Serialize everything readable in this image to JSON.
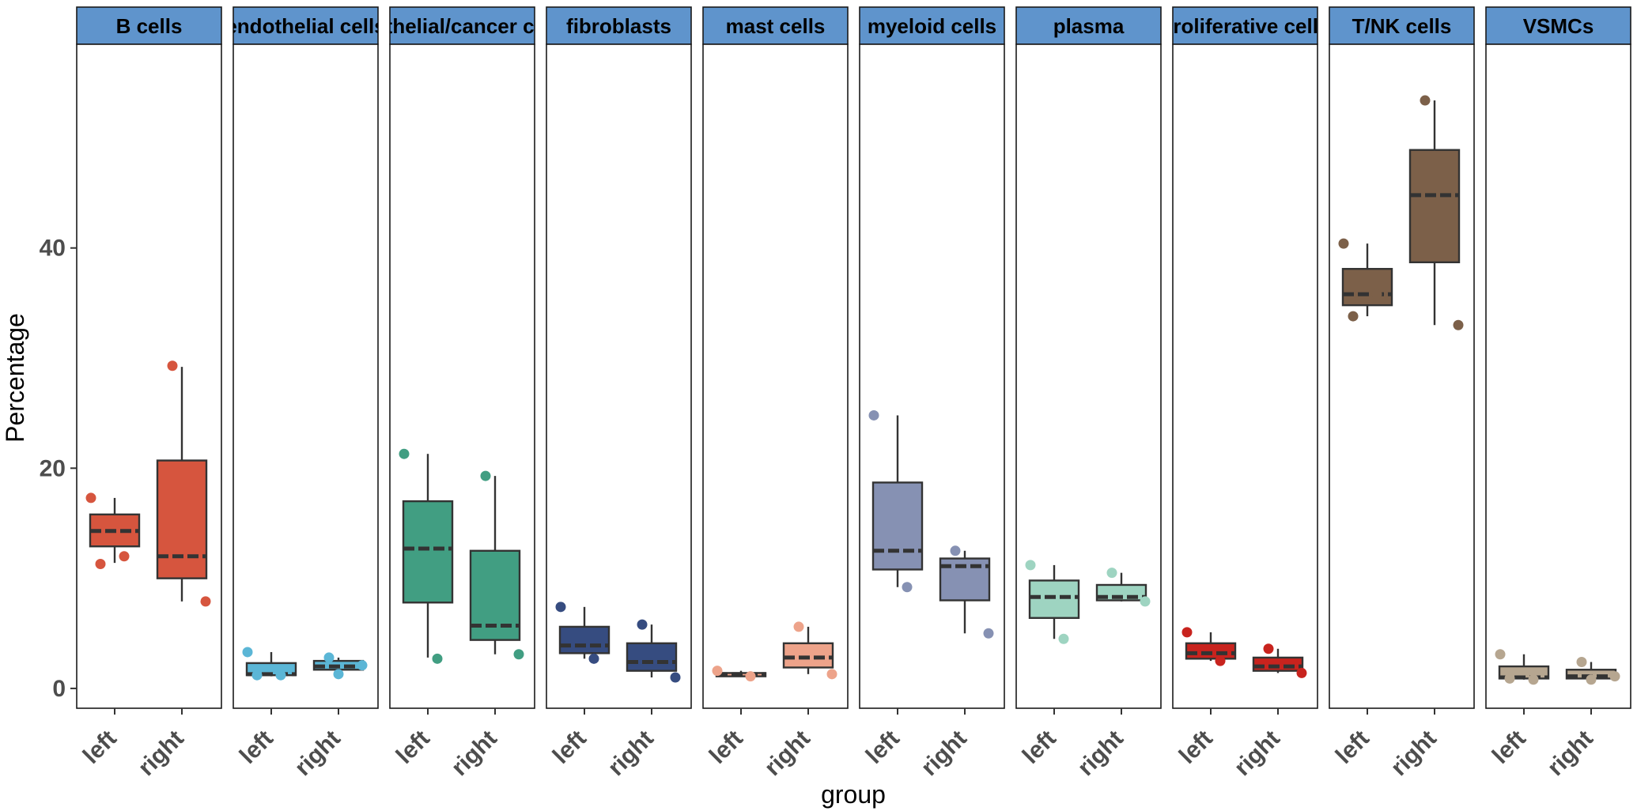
{
  "chart_data": {
    "type": "boxplot",
    "xlabel": "group",
    "ylabel": "Percentage",
    "ylim": [
      -1.8,
      58.5
    ],
    "yticks": [
      0,
      20,
      40
    ],
    "groups": [
      "left",
      "right"
    ],
    "facets": [
      {
        "label": "B cells",
        "color": "#D6553E",
        "boxes": [
          {
            "group": "left",
            "q1": 12.9,
            "median": 14.3,
            "q3": 15.8,
            "whisker_low": 11.4,
            "whisker_high": 17.3,
            "points": [
              17.3,
              12.0,
              11.3
            ]
          },
          {
            "group": "right",
            "q1": 10.0,
            "median": 12.0,
            "q3": 20.7,
            "whisker_low": 7.9,
            "whisker_high": 29.2,
            "points": [
              29.3,
              7.9
            ]
          }
        ]
      },
      {
        "label": "endothelial cells",
        "color": "#5BB6D6",
        "boxes": [
          {
            "group": "left",
            "q1": 1.2,
            "median": 1.3,
            "q3": 2.3,
            "whisker_low": 1.1,
            "whisker_high": 3.3,
            "points": [
              3.3,
              1.2,
              1.2
            ]
          },
          {
            "group": "right",
            "q1": 1.7,
            "median": 2.0,
            "q3": 2.5,
            "whisker_low": 1.3,
            "whisker_high": 2.8,
            "points": [
              2.8,
              2.1,
              1.3
            ]
          }
        ]
      },
      {
        "label": "epithelial/cancer cells",
        "color": "#419E82",
        "boxes": [
          {
            "group": "left",
            "q1": 7.8,
            "median": 12.7,
            "q3": 17.0,
            "whisker_low": 2.8,
            "whisker_high": 21.3,
            "points": [
              21.3,
              2.7
            ]
          },
          {
            "group": "right",
            "q1": 4.4,
            "median": 5.7,
            "q3": 12.5,
            "whisker_low": 3.1,
            "whisker_high": 19.3,
            "points": [
              19.3,
              3.1
            ]
          }
        ]
      },
      {
        "label": "fibroblasts",
        "color": "#364C80",
        "boxes": [
          {
            "group": "left",
            "q1": 3.2,
            "median": 3.9,
            "q3": 5.6,
            "whisker_low": 2.7,
            "whisker_high": 7.4,
            "points": [
              7.4,
              2.7
            ]
          },
          {
            "group": "right",
            "q1": 1.6,
            "median": 2.4,
            "q3": 4.1,
            "whisker_low": 1.0,
            "whisker_high": 5.8,
            "points": [
              5.8,
              1.0
            ]
          }
        ]
      },
      {
        "label": "mast cells",
        "color": "#EDA38A",
        "boxes": [
          {
            "group": "left",
            "q1": 1.1,
            "median": 1.3,
            "q3": 1.4,
            "whisker_low": 1.1,
            "whisker_high": 1.6,
            "points": [
              1.6,
              1.1
            ]
          },
          {
            "group": "right",
            "q1": 1.9,
            "median": 2.8,
            "q3": 4.1,
            "whisker_low": 1.3,
            "whisker_high": 5.6,
            "points": [
              5.6,
              1.3
            ]
          }
        ]
      },
      {
        "label": "myeloid cells",
        "color": "#8691B3",
        "boxes": [
          {
            "group": "left",
            "q1": 10.8,
            "median": 12.5,
            "q3": 18.7,
            "whisker_low": 9.2,
            "whisker_high": 24.8,
            "points": [
              24.8,
              9.2
            ]
          },
          {
            "group": "right",
            "q1": 8.0,
            "median": 11.1,
            "q3": 11.8,
            "whisker_low": 5.0,
            "whisker_high": 12.5,
            "points": [
              12.5,
              5.0
            ]
          }
        ]
      },
      {
        "label": "plasma",
        "color": "#9ED4C1",
        "boxes": [
          {
            "group": "left",
            "q1": 6.4,
            "median": 8.3,
            "q3": 9.8,
            "whisker_low": 4.5,
            "whisker_high": 11.2,
            "points": [
              11.2,
              4.5
            ]
          },
          {
            "group": "right",
            "q1": 8.0,
            "median": 8.3,
            "q3": 9.4,
            "whisker_low": 7.9,
            "whisker_high": 10.5,
            "points": [
              10.5,
              7.9
            ]
          }
        ]
      },
      {
        "label": "proliferative cells",
        "color": "#C8231E",
        "boxes": [
          {
            "group": "left",
            "q1": 2.7,
            "median": 3.2,
            "q3": 4.1,
            "whisker_low": 2.5,
            "whisker_high": 5.1,
            "points": [
              5.1,
              2.5
            ]
          },
          {
            "group": "right",
            "q1": 1.6,
            "median": 2.0,
            "q3": 2.8,
            "whisker_low": 1.4,
            "whisker_high": 3.6,
            "points": [
              3.6,
              1.4
            ]
          }
        ]
      },
      {
        "label": "T/NK cells",
        "color": "#7C6049",
        "boxes": [
          {
            "group": "left",
            "q1": 34.8,
            "median": 35.8,
            "q3": 38.1,
            "whisker_low": 33.8,
            "whisker_high": 40.4,
            "points": [
              40.4,
              35.8,
              33.8
            ]
          },
          {
            "group": "right",
            "q1": 38.7,
            "median": 44.8,
            "q3": 48.9,
            "whisker_low": 33.0,
            "whisker_high": 53.4,
            "points": [
              53.4,
              33.0
            ]
          }
        ]
      },
      {
        "label": "VSMCs",
        "color": "#B6A690",
        "boxes": [
          {
            "group": "left",
            "q1": 0.9,
            "median": 1.0,
            "q3": 2.0,
            "whisker_low": 0.8,
            "whisker_high": 3.1,
            "points": [
              3.1,
              0.8,
              0.9
            ]
          },
          {
            "group": "right",
            "q1": 0.9,
            "median": 1.1,
            "q3": 1.7,
            "whisker_low": 0.8,
            "whisker_high": 2.4,
            "points": [
              2.4,
              1.1,
              0.8
            ]
          }
        ]
      }
    ]
  }
}
